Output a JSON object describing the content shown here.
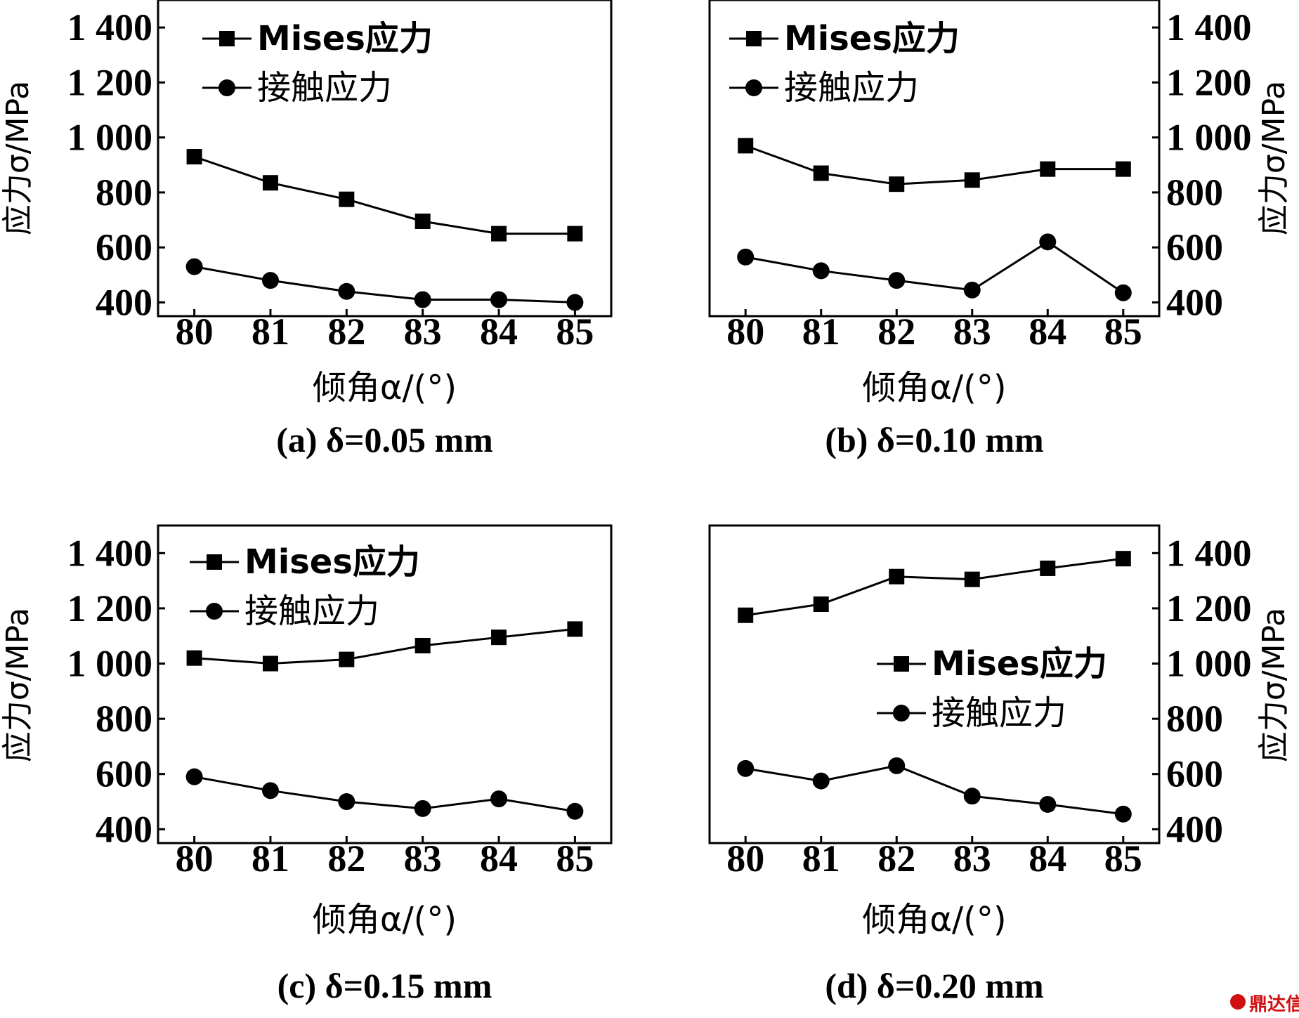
{
  "figure": {
    "watermark": "鼎达信"
  },
  "chart_data": [
    {
      "id": "a",
      "type": "line",
      "caption": "(a) δ=0.05 mm",
      "xlabel": "倾角α/(°)",
      "ylabel": "应力σ/MPa",
      "x": [
        80,
        81,
        82,
        83,
        84,
        85
      ],
      "xticks": [
        "80",
        "81",
        "82",
        "83",
        "84",
        "85"
      ],
      "yticks": [
        "1 400",
        "1 200",
        "1 000",
        "800",
        "600",
        "400"
      ],
      "ylim": [
        350,
        1500
      ],
      "yaxis_side": "left",
      "legend_position": "top-left",
      "series": [
        {
          "name": "Mises应力",
          "marker": "square",
          "values": [
            930,
            835,
            775,
            695,
            650,
            650
          ]
        },
        {
          "name": "接触应力",
          "marker": "circle",
          "values": [
            530,
            480,
            440,
            410,
            410,
            400
          ]
        }
      ]
    },
    {
      "id": "b",
      "type": "line",
      "caption": "(b) δ=0.10 mm",
      "xlabel": "倾角α/(°)",
      "ylabel": "应力σ/MPa",
      "x": [
        80,
        81,
        82,
        83,
        84,
        85
      ],
      "xticks": [
        "80",
        "81",
        "82",
        "83",
        "84",
        "85"
      ],
      "yticks": [
        "1 400",
        "1 200",
        "1 000",
        "800",
        "600",
        "400"
      ],
      "ylim": [
        350,
        1500
      ],
      "yaxis_side": "right",
      "legend_position": "top-left",
      "series": [
        {
          "name": "Mises应力",
          "marker": "square",
          "values": [
            970,
            870,
            830,
            845,
            885,
            885
          ]
        },
        {
          "name": "接触应力",
          "marker": "circle",
          "values": [
            565,
            515,
            480,
            445,
            620,
            435
          ]
        }
      ]
    },
    {
      "id": "c",
      "type": "line",
      "caption": "(c) δ=0.15 mm",
      "xlabel": "倾角α/(°)",
      "ylabel": "应力σ/MPa",
      "x": [
        80,
        81,
        82,
        83,
        84,
        85
      ],
      "xticks": [
        "80",
        "81",
        "82",
        "83",
        "84",
        "85"
      ],
      "yticks": [
        "1 400",
        "1 200",
        "1 000",
        "800",
        "600",
        "400"
      ],
      "ylim": [
        350,
        1500
      ],
      "yaxis_side": "left",
      "legend_position": "top-left",
      "series": [
        {
          "name": "Mises应力",
          "marker": "square",
          "values": [
            1020,
            1000,
            1015,
            1065,
            1095,
            1125
          ]
        },
        {
          "name": "接触应力",
          "marker": "circle",
          "values": [
            590,
            540,
            500,
            475,
            510,
            465
          ]
        }
      ]
    },
    {
      "id": "d",
      "type": "line",
      "caption": "(d) δ=0.20 mm",
      "xlabel": "倾角α/(°)",
      "ylabel": "应力σ/MPa",
      "x": [
        80,
        81,
        82,
        83,
        84,
        85
      ],
      "xticks": [
        "80",
        "81",
        "82",
        "83",
        "84",
        "85"
      ],
      "yticks": [
        "1 400",
        "1 200",
        "1 000",
        "800",
        "600",
        "400"
      ],
      "ylim": [
        350,
        1500
      ],
      "yaxis_side": "right",
      "legend_position": "middle-right",
      "series": [
        {
          "name": "Mises应力",
          "marker": "square",
          "values": [
            1175,
            1215,
            1315,
            1305,
            1345,
            1380
          ]
        },
        {
          "name": "接触应力",
          "marker": "circle",
          "values": [
            620,
            575,
            630,
            520,
            490,
            455
          ]
        }
      ]
    }
  ]
}
